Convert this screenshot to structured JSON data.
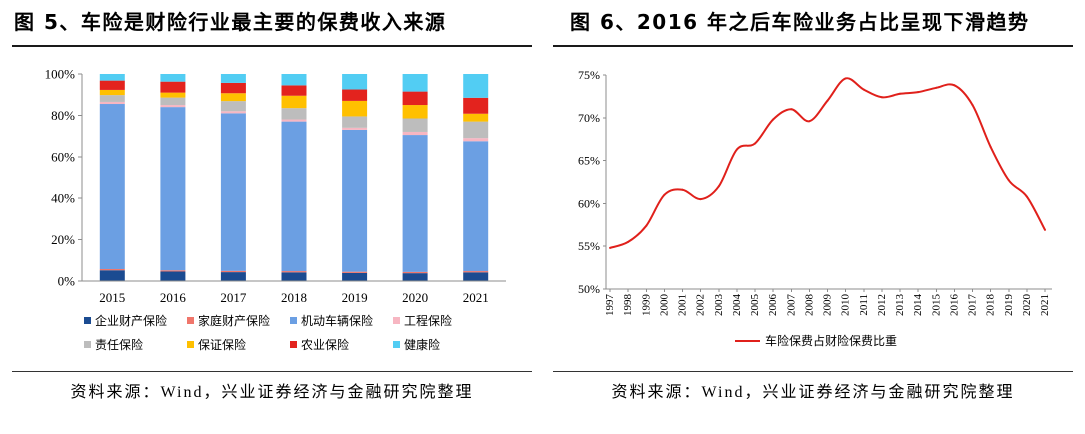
{
  "figures": [
    {
      "title": "图 5、车险是财险行业最主要的保费收入来源",
      "source": "资料来源：Wind，兴业证券经济与金融研究院整理"
    },
    {
      "title": "图 6、2016 年之后车险业务占比呈现下滑趋势",
      "source": "资料来源：Wind，兴业证券经济与金融研究院整理"
    }
  ],
  "chart_data": [
    {
      "type": "bar",
      "stacked": true,
      "categories": [
        "2015",
        "2016",
        "2017",
        "2018",
        "2019",
        "2020",
        "2021"
      ],
      "ylim": [
        0,
        100
      ],
      "yticks": [
        "0%",
        "20%",
        "40%",
        "60%",
        "80%",
        "100%"
      ],
      "grid": false,
      "legend_placement": "bottom",
      "series": [
        {
          "name": "企业财产保险",
          "color": "#1B4B91",
          "values": [
            5.2,
            4.6,
            4.3,
            4.2,
            3.9,
            3.8,
            4.2
          ]
        },
        {
          "name": "家庭财产保险",
          "color": "#F0766B",
          "values": [
            0.6,
            0.6,
            0.6,
            0.6,
            0.6,
            0.6,
            0.6
          ]
        },
        {
          "name": "机动车辆保险",
          "color": "#6B9FE3",
          "values": [
            79.7,
            78.8,
            76.1,
            72.2,
            68.5,
            66.1,
            62.7
          ]
        },
        {
          "name": "工程保险",
          "color": "#F7B6C2",
          "values": [
            1.0,
            1.0,
            1.0,
            1.0,
            1.0,
            1.5,
            1.5
          ]
        },
        {
          "name": "责任保险",
          "color": "#BDBDBD",
          "values": [
            3.3,
            3.6,
            4.9,
            5.5,
            5.5,
            6.5,
            8.0
          ]
        },
        {
          "name": "保证保险",
          "color": "#FFC000",
          "values": [
            2.5,
            2.4,
            3.8,
            6.0,
            7.5,
            6.5,
            3.8
          ]
        },
        {
          "name": "农业保险",
          "color": "#E3231E",
          "values": [
            4.5,
            5.3,
            5.0,
            5.0,
            5.5,
            6.5,
            7.7
          ]
        },
        {
          "name": "健康险",
          "color": "#52CDF3",
          "values": [
            3.2,
            3.7,
            4.3,
            5.5,
            7.5,
            8.5,
            11.5
          ]
        }
      ]
    },
    {
      "type": "line",
      "x": [
        "1997",
        "1998",
        "1999",
        "2000",
        "2001",
        "2002",
        "2003",
        "2004",
        "2005",
        "2006",
        "2007",
        "2008",
        "2009",
        "2010",
        "2011",
        "2012",
        "2013",
        "2014",
        "2015",
        "2016",
        "2017",
        "2018",
        "2019",
        "2020",
        "2021"
      ],
      "ylim": [
        50,
        75
      ],
      "yticks": [
        "50%",
        "55%",
        "60%",
        "65%",
        "70%",
        "75%"
      ],
      "grid": false,
      "legend_placement": "bottom",
      "series": [
        {
          "name": "车险保费占财险保费比重",
          "color": "#E0201B",
          "values": [
            54.8,
            55.5,
            57.4,
            61.0,
            61.6,
            60.5,
            62.0,
            66.3,
            67.0,
            69.8,
            71.0,
            69.6,
            72.0,
            74.6,
            73.3,
            72.4,
            72.8,
            73.0,
            73.5,
            73.8,
            71.5,
            66.6,
            62.7,
            60.8,
            56.9
          ]
        }
      ]
    }
  ]
}
